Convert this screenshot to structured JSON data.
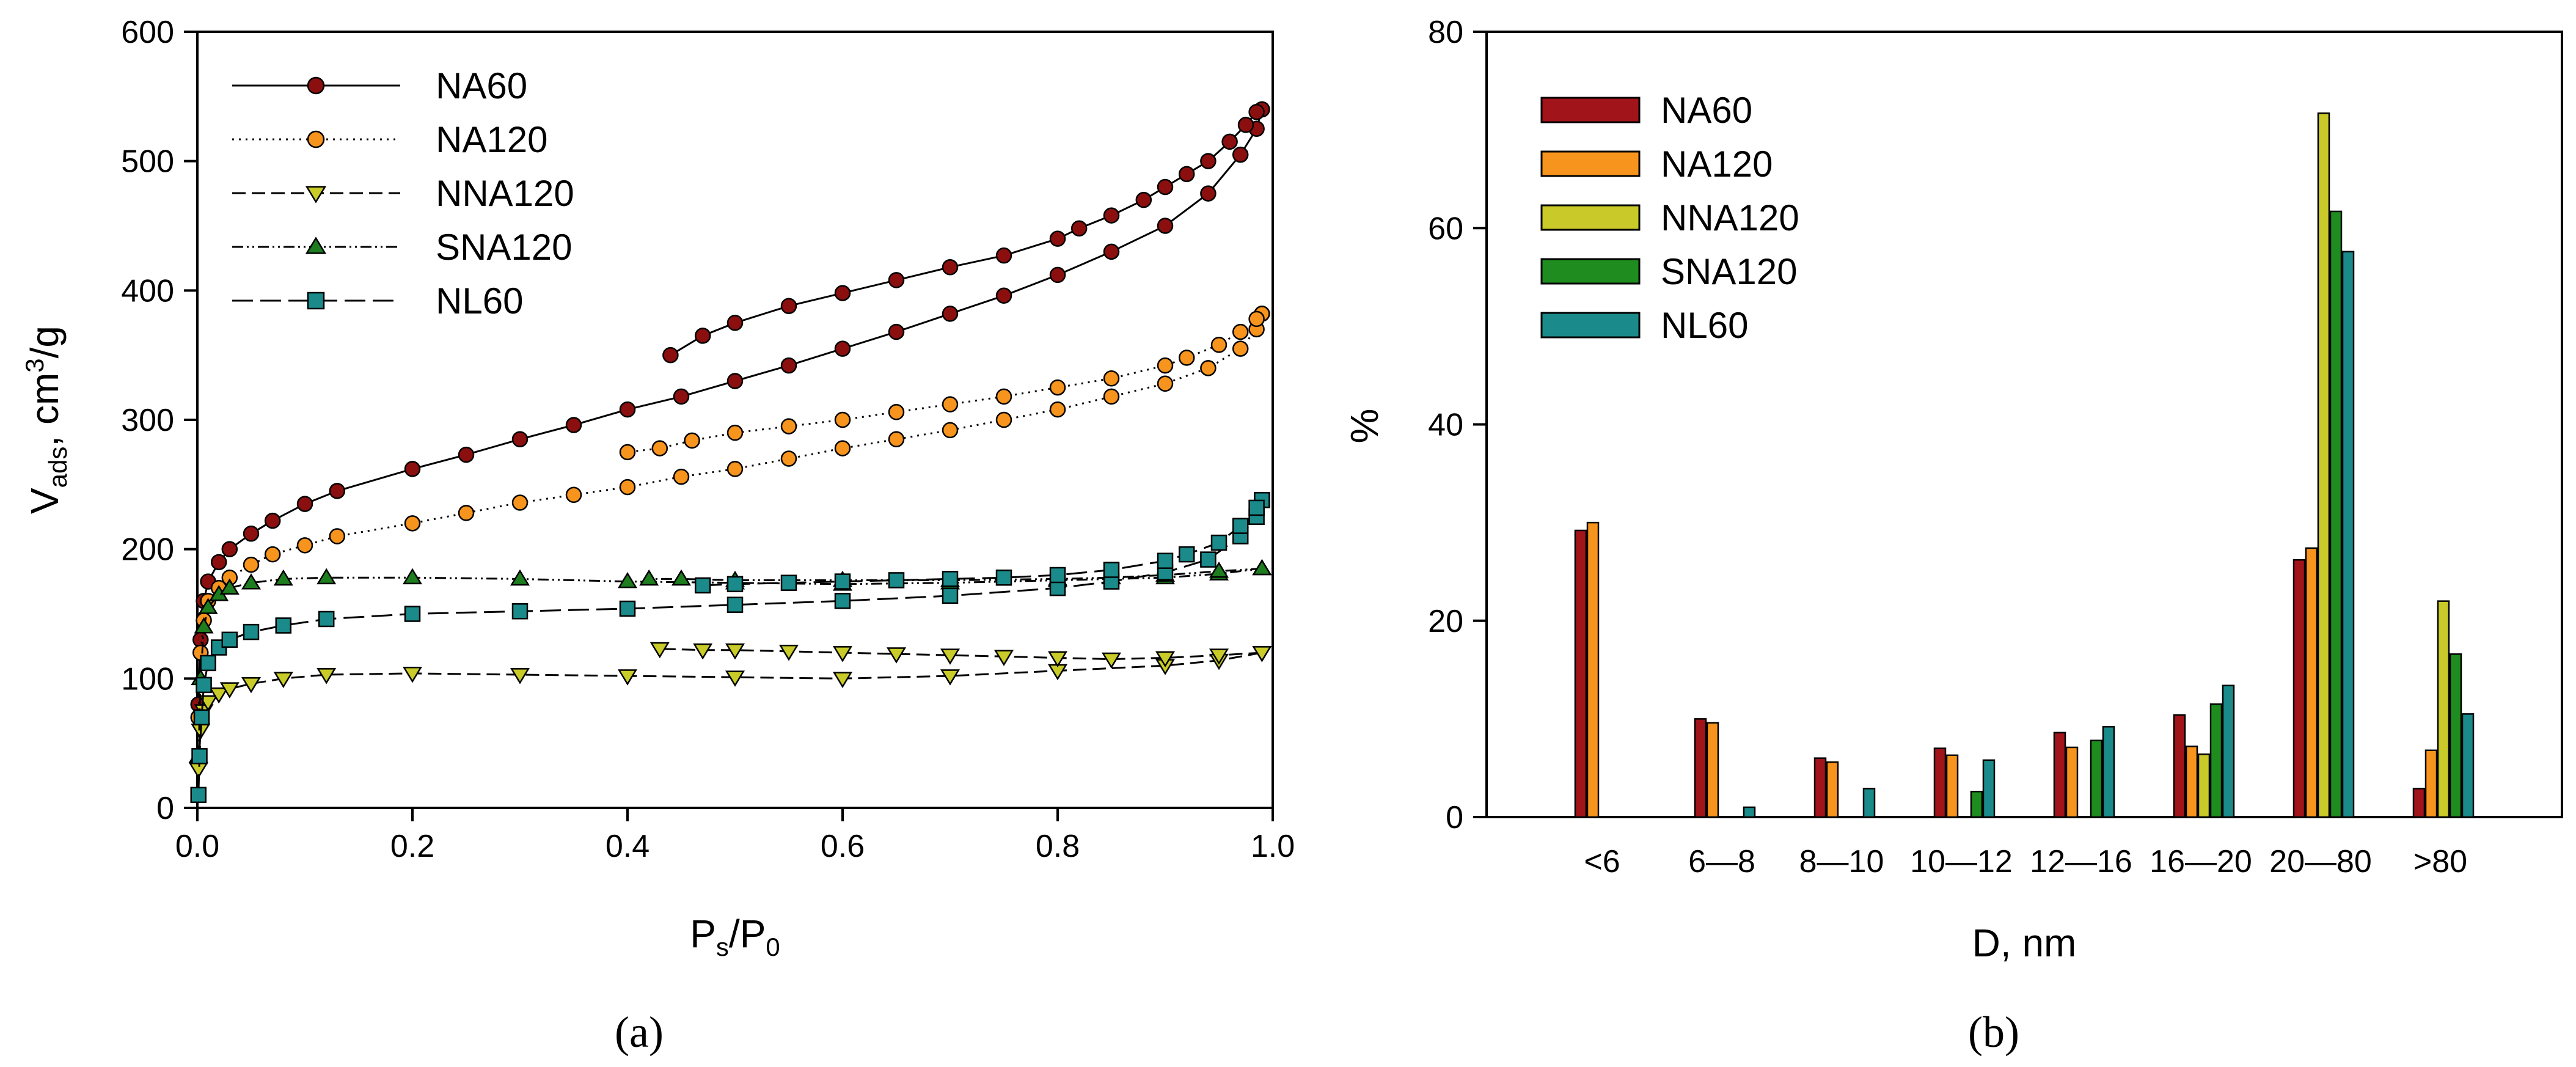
{
  "chart_data": [
    {
      "type": "line",
      "panel_label": "(a)",
      "xlabel": {
        "main": "P",
        "sub1": "s",
        "mid": "/P",
        "sub2": "0"
      },
      "ylabel": {
        "main": "V",
        "sub": "ads",
        "mid": ", cm",
        "sup": "3",
        "end": "/g"
      },
      "xlim": [
        0,
        1
      ],
      "ylim": [
        0,
        600
      ],
      "xticks": [
        "0.0",
        "0.2",
        "0.4",
        "0.6",
        "0.8",
        "1.0"
      ],
      "yticks": [
        "0",
        "100",
        "200",
        "300",
        "400",
        "500",
        "600"
      ],
      "legend_position": "top-left",
      "series": [
        {
          "name": "NA60",
          "color": "#8b0f0f",
          "marker": "circle",
          "dash": "",
          "adsorption": [
            [
              0.001,
              80
            ],
            [
              0.003,
              130
            ],
            [
              0.006,
              160
            ],
            [
              0.01,
              175
            ],
            [
              0.02,
              190
            ],
            [
              0.03,
              200
            ],
            [
              0.05,
              212
            ],
            [
              0.07,
              222
            ],
            [
              0.1,
              235
            ],
            [
              0.13,
              245
            ],
            [
              0.2,
              262
            ],
            [
              0.25,
              273
            ],
            [
              0.3,
              285
            ],
            [
              0.35,
              296
            ],
            [
              0.4,
              308
            ],
            [
              0.45,
              318
            ],
            [
              0.5,
              330
            ],
            [
              0.55,
              342
            ],
            [
              0.6,
              355
            ],
            [
              0.65,
              368
            ],
            [
              0.7,
              382
            ],
            [
              0.75,
              396
            ],
            [
              0.8,
              412
            ],
            [
              0.85,
              430
            ],
            [
              0.9,
              450
            ],
            [
              0.94,
              475
            ],
            [
              0.97,
              505
            ],
            [
              0.985,
              525
            ],
            [
              0.99,
              540
            ]
          ],
          "desorption": [
            [
              0.99,
              540
            ],
            [
              0.985,
              538
            ],
            [
              0.975,
              528
            ],
            [
              0.96,
              515
            ],
            [
              0.94,
              500
            ],
            [
              0.92,
              490
            ],
            [
              0.9,
              480
            ],
            [
              0.88,
              470
            ],
            [
              0.85,
              458
            ],
            [
              0.82,
              448
            ],
            [
              0.8,
              440
            ],
            [
              0.75,
              427
            ],
            [
              0.7,
              418
            ],
            [
              0.65,
              408
            ],
            [
              0.6,
              398
            ],
            [
              0.55,
              388
            ],
            [
              0.5,
              375
            ],
            [
              0.47,
              365
            ],
            [
              0.44,
              350
            ]
          ]
        },
        {
          "name": "NA120",
          "color": "#f7941d",
          "marker": "circle",
          "dash": "3 8",
          "adsorption": [
            [
              0.001,
              70
            ],
            [
              0.003,
              120
            ],
            [
              0.006,
              145
            ],
            [
              0.01,
              160
            ],
            [
              0.02,
              170
            ],
            [
              0.03,
              178
            ],
            [
              0.05,
              188
            ],
            [
              0.07,
              196
            ],
            [
              0.1,
              203
            ],
            [
              0.13,
              210
            ],
            [
              0.2,
              220
            ],
            [
              0.25,
              228
            ],
            [
              0.3,
              236
            ],
            [
              0.35,
              242
            ],
            [
              0.4,
              248
            ],
            [
              0.45,
              256
            ],
            [
              0.5,
              262
            ],
            [
              0.55,
              270
            ],
            [
              0.6,
              278
            ],
            [
              0.65,
              285
            ],
            [
              0.7,
              292
            ],
            [
              0.75,
              300
            ],
            [
              0.8,
              308
            ],
            [
              0.85,
              318
            ],
            [
              0.9,
              328
            ],
            [
              0.94,
              340
            ],
            [
              0.97,
              355
            ],
            [
              0.985,
              370
            ],
            [
              0.99,
              382
            ]
          ],
          "desorption": [
            [
              0.99,
              382
            ],
            [
              0.985,
              378
            ],
            [
              0.97,
              368
            ],
            [
              0.95,
              358
            ],
            [
              0.92,
              348
            ],
            [
              0.9,
              342
            ],
            [
              0.85,
              332
            ],
            [
              0.8,
              325
            ],
            [
              0.75,
              318
            ],
            [
              0.7,
              312
            ],
            [
              0.65,
              306
            ],
            [
              0.6,
              300
            ],
            [
              0.55,
              295
            ],
            [
              0.5,
              290
            ],
            [
              0.46,
              284
            ],
            [
              0.43,
              278
            ],
            [
              0.4,
              275
            ]
          ]
        },
        {
          "name": "NNA120",
          "color": "#c9cc28",
          "marker": "triangle-down",
          "dash": "22 10",
          "adsorption": [
            [
              0.001,
              30
            ],
            [
              0.003,
              60
            ],
            [
              0.006,
              75
            ],
            [
              0.01,
              82
            ],
            [
              0.02,
              88
            ],
            [
              0.03,
              92
            ],
            [
              0.05,
              96
            ],
            [
              0.08,
              100
            ],
            [
              0.12,
              103
            ],
            [
              0.2,
              104
            ],
            [
              0.3,
              103
            ],
            [
              0.4,
              102
            ],
            [
              0.5,
              101
            ],
            [
              0.6,
              100
            ],
            [
              0.7,
              102
            ],
            [
              0.8,
              106
            ],
            [
              0.9,
              110
            ],
            [
              0.95,
              114
            ],
            [
              0.99,
              120
            ]
          ],
          "desorption": [
            [
              0.99,
              120
            ],
            [
              0.95,
              118
            ],
            [
              0.9,
              116
            ],
            [
              0.85,
              115
            ],
            [
              0.8,
              116
            ],
            [
              0.75,
              117
            ],
            [
              0.7,
              118
            ],
            [
              0.65,
              119
            ],
            [
              0.6,
              120
            ],
            [
              0.55,
              121
            ],
            [
              0.5,
              122
            ],
            [
              0.47,
              122
            ],
            [
              0.43,
              123
            ]
          ]
        },
        {
          "name": "SNA120",
          "color": "#1e7d1e",
          "marker": "triangle-up",
          "dash": "18 6 3 6 3 6",
          "adsorption": [
            [
              0.001,
              40
            ],
            [
              0.003,
              100
            ],
            [
              0.006,
              140
            ],
            [
              0.01,
              155
            ],
            [
              0.02,
              165
            ],
            [
              0.03,
              170
            ],
            [
              0.05,
              174
            ],
            [
              0.08,
              177
            ],
            [
              0.12,
              178
            ],
            [
              0.2,
              178
            ],
            [
              0.3,
              177
            ],
            [
              0.4,
              175
            ],
            [
              0.5,
              174
            ],
            [
              0.6,
              173
            ],
            [
              0.7,
              174
            ],
            [
              0.8,
              176
            ],
            [
              0.9,
              178
            ],
            [
              0.95,
              181
            ],
            [
              0.99,
              185
            ]
          ],
          "desorption": [
            [
              0.99,
              185
            ],
            [
              0.95,
              183
            ],
            [
              0.9,
              180
            ],
            [
              0.85,
              178
            ],
            [
              0.8,
              177
            ],
            [
              0.7,
              176
            ],
            [
              0.6,
              176
            ],
            [
              0.5,
              176
            ],
            [
              0.45,
              177
            ],
            [
              0.42,
              177
            ]
          ]
        },
        {
          "name": "NL60",
          "color": "#1a8a8a",
          "marker": "square",
          "dash": "34 12",
          "adsorption": [
            [
              0.001,
              10
            ],
            [
              0.002,
              40
            ],
            [
              0.004,
              70
            ],
            [
              0.006,
              95
            ],
            [
              0.01,
              112
            ],
            [
              0.02,
              124
            ],
            [
              0.03,
              130
            ],
            [
              0.05,
              136
            ],
            [
              0.08,
              141
            ],
            [
              0.12,
              146
            ],
            [
              0.2,
              150
            ],
            [
              0.3,
              152
            ],
            [
              0.4,
              154
            ],
            [
              0.5,
              157
            ],
            [
              0.6,
              160
            ],
            [
              0.7,
              164
            ],
            [
              0.8,
              170
            ],
            [
              0.85,
              175
            ],
            [
              0.9,
              182
            ],
            [
              0.94,
              192
            ],
            [
              0.97,
              210
            ],
            [
              0.985,
              225
            ],
            [
              0.99,
              238
            ]
          ],
          "desorption": [
            [
              0.99,
              238
            ],
            [
              0.985,
              232
            ],
            [
              0.97,
              218
            ],
            [
              0.95,
              205
            ],
            [
              0.92,
              196
            ],
            [
              0.9,
              191
            ],
            [
              0.85,
              184
            ],
            [
              0.8,
              180
            ],
            [
              0.75,
              178
            ],
            [
              0.7,
              177
            ],
            [
              0.65,
              176
            ],
            [
              0.6,
              175
            ],
            [
              0.55,
              174
            ],
            [
              0.5,
              173
            ],
            [
              0.47,
              172
            ]
          ]
        }
      ]
    },
    {
      "type": "bar",
      "panel_label": "(b)",
      "xlabel": "D, nm",
      "ylabel": "%",
      "ylim": [
        0,
        80
      ],
      "yticks": [
        "0",
        "20",
        "40",
        "60",
        "80"
      ],
      "legend_position": "top-left",
      "categories": [
        "<6",
        "6—8",
        "8—10",
        "10—12",
        "12—16",
        "16—20",
        "20—80",
        ">80"
      ],
      "series": [
        {
          "name": "NA60",
          "color": "#a0141a",
          "values": [
            29.2,
            10.0,
            6.0,
            7.0,
            8.6,
            10.4,
            26.2,
            2.9
          ]
        },
        {
          "name": "NA120",
          "color": "#f7941d",
          "values": [
            30.0,
            9.6,
            5.6,
            6.3,
            7.1,
            7.2,
            27.4,
            6.8
          ]
        },
        {
          "name": "NNA120",
          "color": "#c9c929",
          "values": [
            0,
            0,
            0,
            0,
            0,
            6.4,
            71.7,
            22.0
          ]
        },
        {
          "name": "SNA120",
          "color": "#1e8c1e",
          "values": [
            0,
            0,
            0,
            2.6,
            7.8,
            11.5,
            61.7,
            16.6
          ]
        },
        {
          "name": "NL60",
          "color": "#1a8a8a",
          "values": [
            0,
            1.0,
            2.9,
            5.8,
            9.2,
            13.4,
            57.6,
            10.5
          ]
        }
      ]
    }
  ]
}
